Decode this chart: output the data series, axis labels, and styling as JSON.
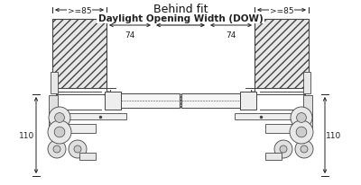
{
  "title": "Behind fit",
  "label_dow": "Daylight Opening Width (DOW)",
  "label_85": ">=85",
  "label_74": "74",
  "label_110": "110",
  "bg_color": "#ffffff",
  "line_color": "#444444",
  "dim_color": "#222222",
  "fig_width": 4.0,
  "fig_height": 2.07,
  "dpi": 100
}
